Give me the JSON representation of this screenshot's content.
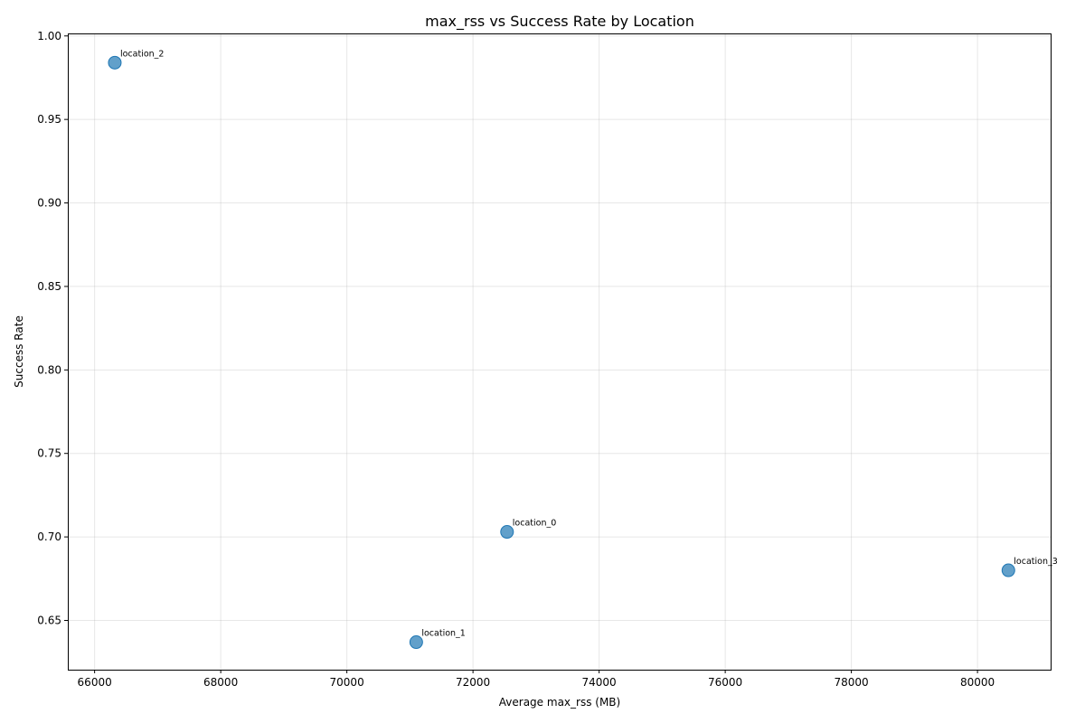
{
  "chart_data": {
    "type": "scatter",
    "title": "max_rss vs Success Rate by Location",
    "xlabel": "Average max_rss (MB)",
    "ylabel": "Success Rate",
    "xlim": [
      65575,
      81160
    ],
    "ylim": [
      0.6205,
      1.0015
    ],
    "xticks": [
      66000,
      68000,
      70000,
      72000,
      74000,
      76000,
      78000,
      80000
    ],
    "yticks": [
      0.65,
      0.7,
      0.75,
      0.8,
      0.85,
      0.9,
      0.95,
      1.0
    ],
    "grid": true,
    "marker_color": "#1f77b4",
    "points": [
      {
        "label": "location_2",
        "x": 66320,
        "y": 0.984
      },
      {
        "label": "location_0",
        "x": 72540,
        "y": 0.703
      },
      {
        "label": "location_3",
        "x": 80490,
        "y": 0.68
      },
      {
        "label": "location_1",
        "x": 71100,
        "y": 0.637
      }
    ]
  }
}
